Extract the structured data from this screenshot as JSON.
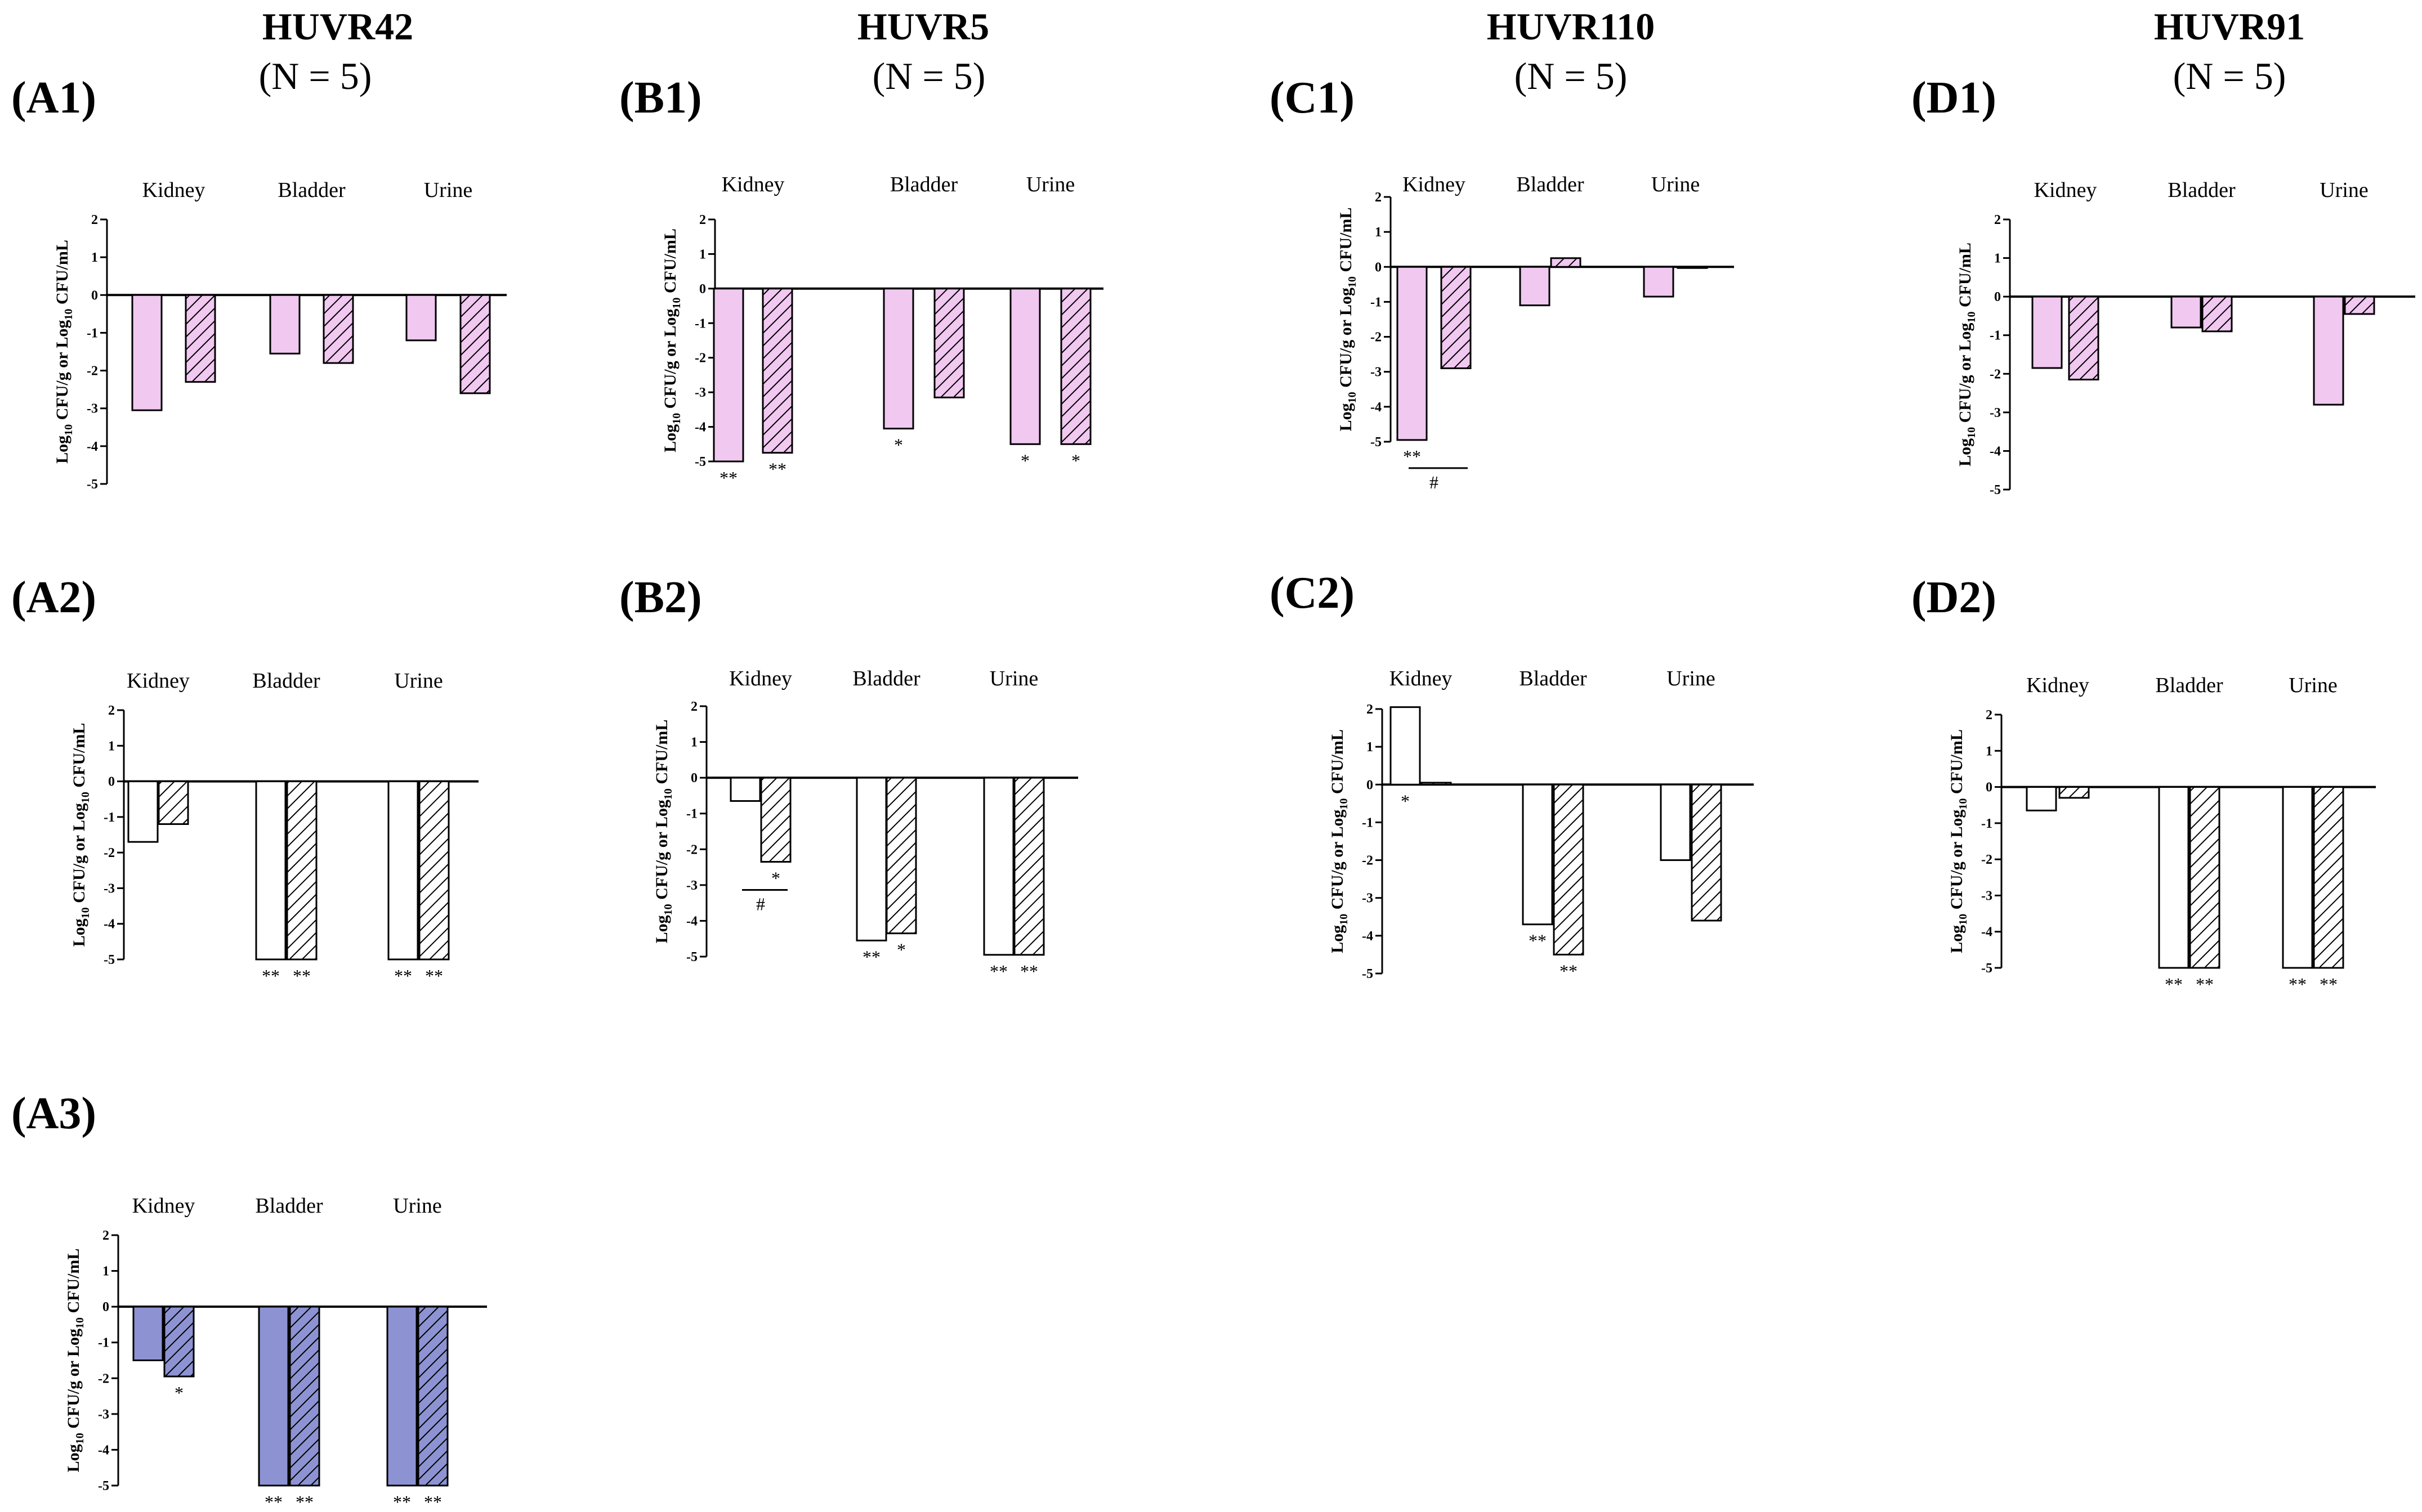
{
  "headers": [
    {
      "title": "HUVR42",
      "n": "(N = 5)"
    },
    {
      "title": "HUVR5",
      "n": "(N = 5)"
    },
    {
      "title": "HUVR110",
      "n": "(N = 5)"
    },
    {
      "title": "HUVR91",
      "n": "(N = 5)"
    }
  ],
  "ylabel": {
    "part1": "Log",
    "sub1": "10",
    "part2": " CFU/g or Log",
    "sub2": "10",
    "part3": " CFU/mL"
  },
  "colors": {
    "pink": "#f0c8f0",
    "blue": "#8d93d2",
    "white": "#ffffff",
    "stroke": "#000000"
  },
  "chart_data": [
    {
      "id": "A1",
      "label": "(A1)",
      "type": "bar",
      "fill": "pink",
      "categories": [
        "Kidney",
        "Bladder",
        "Urine"
      ],
      "ylim": [
        -5,
        2
      ],
      "ticks": [
        "2",
        "1",
        "0",
        "-1",
        "-2",
        "-3",
        "-4",
        "-5"
      ],
      "series": [
        {
          "name": "solid",
          "values": [
            -3.05,
            -1.55,
            -1.2
          ]
        },
        {
          "name": "hatched",
          "values": [
            -2.3,
            -1.8,
            -2.6
          ]
        }
      ],
      "stars": [
        [
          "",
          ""
        ],
        [
          "",
          ""
        ],
        [
          "",
          ""
        ]
      ],
      "bracket": null
    },
    {
      "id": "B1",
      "label": "(B1)",
      "type": "bar",
      "fill": "pink",
      "categories": [
        "Kidney",
        "Bladder",
        "Urine"
      ],
      "ylim": [
        -5,
        2
      ],
      "ticks": [
        "2",
        "1",
        "0",
        "-1",
        "-2",
        "-3",
        "-4",
        "-5"
      ],
      "series": [
        {
          "name": "solid",
          "values": [
            -5.0,
            -4.05,
            -4.5
          ]
        },
        {
          "name": "hatched",
          "values": [
            -4.75,
            -3.15,
            -4.5
          ]
        }
      ],
      "stars": [
        [
          "**",
          "**"
        ],
        [
          "*",
          ""
        ],
        [
          "*",
          "*"
        ]
      ],
      "bracket": null
    },
    {
      "id": "C1",
      "label": "(C1)",
      "type": "bar",
      "fill": "pink",
      "categories": [
        "Kidney",
        "Bladder",
        "Urine"
      ],
      "ylim": [
        -5,
        2
      ],
      "ticks": [
        "2",
        "1",
        "0",
        "-1",
        "-2",
        "-3",
        "-4",
        "-5"
      ],
      "series": [
        {
          "name": "solid",
          "values": [
            -4.95,
            -1.1,
            -0.85
          ]
        },
        {
          "name": "hatched",
          "values": [
            -2.9,
            0.25,
            0
          ]
        }
      ],
      "stars": [
        [
          "**",
          ""
        ],
        [
          "",
          ""
        ],
        [
          "",
          ""
        ]
      ],
      "bracket": {
        "cat": 0,
        "symbol": "#"
      }
    },
    {
      "id": "D1",
      "label": "(D1)",
      "type": "bar",
      "fill": "pink",
      "categories": [
        "Kidney",
        "Bladder",
        "Urine"
      ],
      "ylim": [
        -5,
        2
      ],
      "ticks": [
        "2",
        "1",
        "0",
        "-1",
        "-2",
        "-3",
        "-4",
        "-5"
      ],
      "series": [
        {
          "name": "solid",
          "values": [
            -1.85,
            -0.8,
            -2.8
          ]
        },
        {
          "name": "hatched",
          "values": [
            -2.15,
            -0.9,
            -0.45
          ]
        }
      ],
      "stars": [
        [
          "",
          ""
        ],
        [
          "",
          ""
        ],
        [
          "",
          ""
        ]
      ],
      "bracket": null
    },
    {
      "id": "A2",
      "label": "(A2)",
      "type": "bar",
      "fill": "white",
      "categories": [
        "Kidney",
        "Bladder",
        "Urine"
      ],
      "ylim": [
        -5,
        2
      ],
      "ticks": [
        "2",
        "1",
        "0",
        "-1",
        "-2",
        "-3",
        "-4",
        "-5"
      ],
      "series": [
        {
          "name": "solid",
          "values": [
            -1.7,
            -5.0,
            -5.0
          ]
        },
        {
          "name": "hatched",
          "values": [
            -1.2,
            -5.0,
            -5.0
          ]
        }
      ],
      "stars": [
        [
          "",
          ""
        ],
        [
          "**",
          "**"
        ],
        [
          "**",
          "**"
        ]
      ],
      "bracket": null
    },
    {
      "id": "B2",
      "label": "(B2)",
      "type": "bar",
      "fill": "white",
      "categories": [
        "Kidney",
        "Bladder",
        "Urine"
      ],
      "ylim": [
        -5,
        2
      ],
      "ticks": [
        "2",
        "1",
        "0",
        "-1",
        "-2",
        "-3",
        "-4",
        "-5"
      ],
      "series": [
        {
          "name": "solid",
          "values": [
            -0.65,
            -4.55,
            -4.95
          ]
        },
        {
          "name": "hatched",
          "values": [
            -2.35,
            -4.35,
            -4.95
          ]
        }
      ],
      "stars": [
        [
          "",
          "*"
        ],
        [
          "**",
          "*"
        ],
        [
          "**",
          "**"
        ]
      ],
      "bracket": {
        "cat": 0,
        "symbol": "#"
      }
    },
    {
      "id": "C2",
      "label": "(C2)",
      "type": "bar",
      "fill": "white",
      "categories": [
        "Kidney",
        "Bladder",
        "Urine"
      ],
      "ylim": [
        -5,
        2
      ],
      "ticks": [
        "2",
        "1",
        "0",
        "-1",
        "-2",
        "-3",
        "-4",
        "-5"
      ],
      "series": [
        {
          "name": "solid",
          "values": [
            2.05,
            -3.7,
            -2.0
          ]
        },
        {
          "name": "hatched",
          "values": [
            0.05,
            -4.5,
            -3.6
          ]
        }
      ],
      "stars": [
        [
          "*",
          ""
        ],
        [
          "**",
          "**"
        ],
        [
          "",
          ""
        ]
      ],
      "bracket": null
    },
    {
      "id": "D2",
      "label": "(D2)",
      "type": "bar",
      "fill": "white",
      "categories": [
        "Kidney",
        "Bladder",
        "Urine"
      ],
      "ylim": [
        -5,
        2
      ],
      "ticks": [
        "2",
        "1",
        "0",
        "-1",
        "-2",
        "-3",
        "-4",
        "-5"
      ],
      "series": [
        {
          "name": "solid",
          "values": [
            -0.65,
            -5.0,
            -5.0
          ]
        },
        {
          "name": "hatched",
          "values": [
            -0.3,
            -5.0,
            -5.0
          ]
        }
      ],
      "stars": [
        [
          "",
          ""
        ],
        [
          "**",
          "**"
        ],
        [
          "**",
          "**"
        ]
      ],
      "bracket": null
    },
    {
      "id": "A3",
      "label": "(A3)",
      "type": "bar",
      "fill": "blue",
      "categories": [
        "Kidney",
        "Bladder",
        "Urine"
      ],
      "ylim": [
        -5,
        2
      ],
      "ticks": [
        "2",
        "1",
        "0",
        "-1",
        "-2",
        "-3",
        "-4",
        "-5"
      ],
      "series": [
        {
          "name": "solid",
          "values": [
            -1.5,
            -5.0,
            -5.0
          ]
        },
        {
          "name": "hatched",
          "values": [
            -1.95,
            -5.0,
            -5.0
          ]
        }
      ],
      "stars": [
        [
          "",
          "*"
        ],
        [
          "**",
          "**"
        ],
        [
          "**",
          "**"
        ]
      ],
      "bracket": null
    }
  ]
}
